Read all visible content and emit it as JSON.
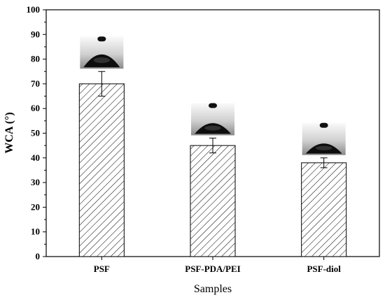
{
  "chart_data": {
    "type": "bar",
    "categories": [
      "PSF",
      "PSF-PDA/PEI",
      "PSF-diol"
    ],
    "values": [
      70,
      45,
      38
    ],
    "error": [
      5,
      3,
      2
    ],
    "xlabel": "Samples",
    "ylabel": "WCA (°)",
    "ylim": [
      0,
      100
    ],
    "yticks": [
      0,
      10,
      20,
      30,
      40,
      50,
      60,
      70,
      80,
      90,
      100
    ],
    "grid": false,
    "bar_pattern": "diagonal-hatch",
    "bar_fill": "#ffffff",
    "bar_stroke": "#000000",
    "inset_images": "water-droplet-contact-angle-photo"
  }
}
